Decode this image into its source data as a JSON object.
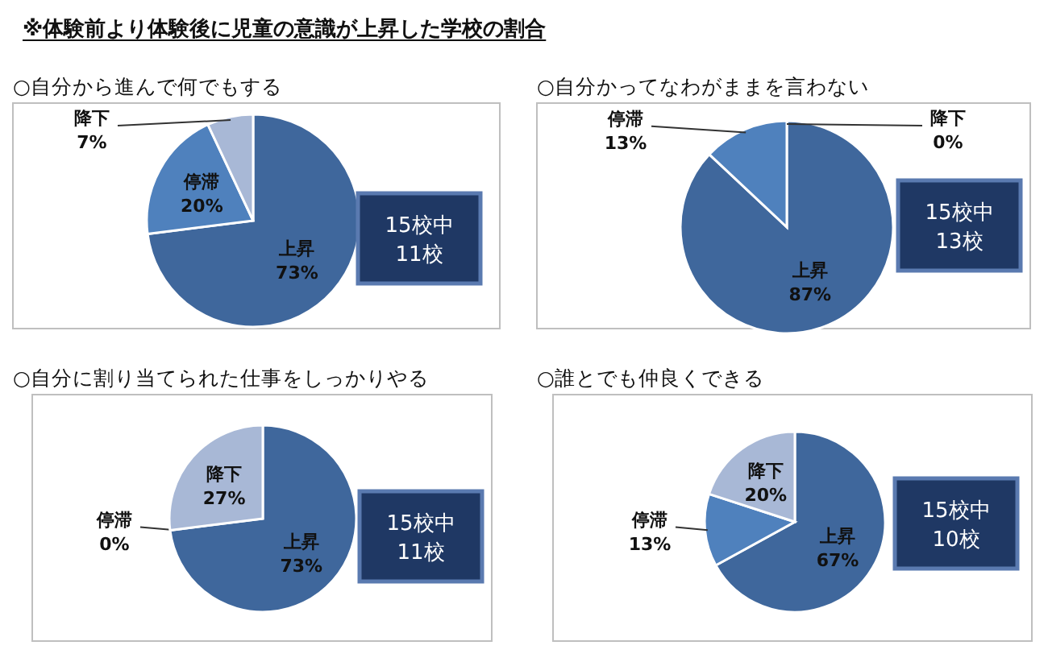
{
  "chart_data": [
    {
      "type": "pie",
      "title": "※体験前より体験後に児童の意識が上昇した学校の割合",
      "subtitle": "○自分から進んで何でもする",
      "categories": [
        "上昇",
        "停滞",
        "降下"
      ],
      "values": [
        73,
        20,
        7
      ],
      "value_labels": [
        "73%",
        "20%",
        "7%"
      ],
      "colors": [
        "#3f679c",
        "#4f81bd",
        "#a8b8d6"
      ],
      "annotations": [
        "15校中",
        "11校"
      ]
    },
    {
      "type": "pie",
      "title": "○自分かってなわがままを言わない",
      "categories": [
        "上昇",
        "停滞",
        "降下"
      ],
      "values": [
        87,
        13,
        0
      ],
      "value_labels": [
        "87%",
        "13%",
        "0%"
      ],
      "colors": [
        "#3f679c",
        "#4f81bd",
        "#a8b8d6"
      ],
      "annotations": [
        "15校中",
        "13校"
      ]
    },
    {
      "type": "pie",
      "title": "○自分に割り当てられた仕事をしっかりやる",
      "categories": [
        "上昇",
        "停滞",
        "降下"
      ],
      "values": [
        73,
        0,
        27
      ],
      "value_labels": [
        "73%",
        "0%",
        "27%"
      ],
      "colors": [
        "#3f679c",
        "#4f81bd",
        "#a8b8d6"
      ],
      "annotations": [
        "15校中",
        "11校"
      ]
    },
    {
      "type": "pie",
      "title": "○誰とでも仲良くできる",
      "categories": [
        "上昇",
        "停滞",
        "降下"
      ],
      "values": [
        67,
        13,
        20
      ],
      "value_labels": [
        "67%",
        "13%",
        "20%"
      ],
      "colors": [
        "#3f679c",
        "#4f81bd",
        "#a8b8d6"
      ],
      "annotations": [
        "15校中",
        "10校"
      ]
    }
  ]
}
